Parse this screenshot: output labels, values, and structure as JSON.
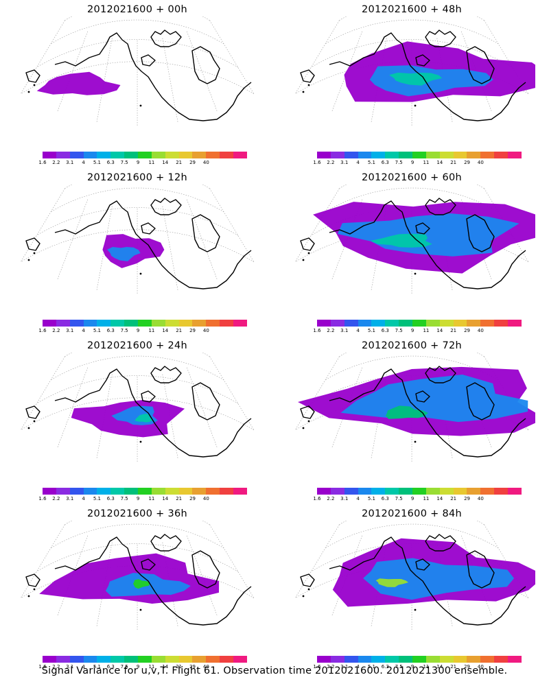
{
  "palette": [
    "#9900cc",
    "#8a2be2",
    "#3355ee",
    "#1a88ee",
    "#00b0e8",
    "#00c8a8",
    "#00c07a",
    "#22d022",
    "#99dd33",
    "#ccdd33",
    "#e8c830",
    "#e8a030",
    "#f07030",
    "#f04040",
    "#f01a80"
  ],
  "scale_labels": [
    "1.6",
    "2.2",
    "3.1",
    "4",
    "5.1",
    "6.3",
    "7.5",
    "9",
    "11",
    "14",
    "21",
    "29",
    "40"
  ],
  "panels": [
    {
      "title": "2012021600 + 00h"
    },
    {
      "title": "2012021600 + 48h"
    },
    {
      "title": "2012021600 + 12h"
    },
    {
      "title": "2012021600 + 60h"
    },
    {
      "title": "2012021600 + 24h"
    },
    {
      "title": "2012021600 + 72h"
    },
    {
      "title": "2012021600 + 36h"
    },
    {
      "title": "2012021600 + 84h"
    }
  ],
  "footer": "Signal Variance for u,v,T. Flight 61. Observation time 2012021600. 2012021300 ensemble."
}
